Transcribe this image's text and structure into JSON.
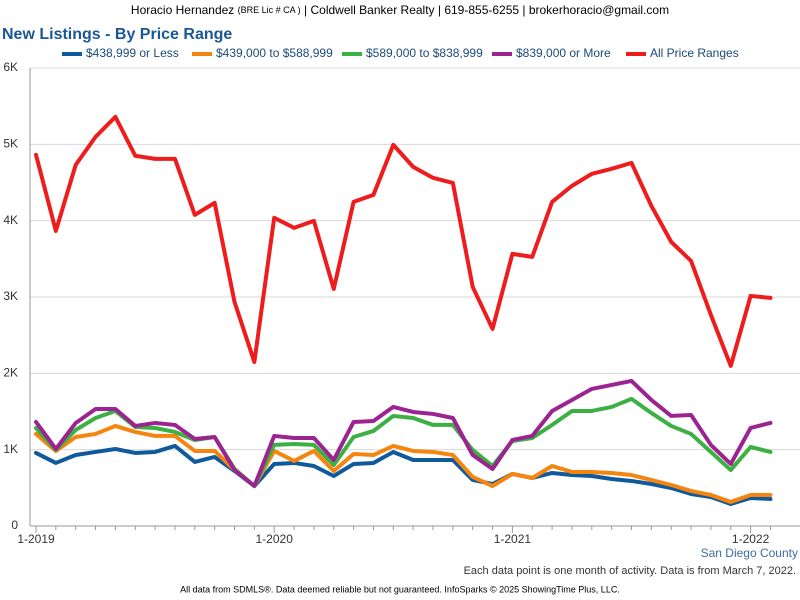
{
  "header": {
    "name": "Horacio Hernandez",
    "license": "(BRE Lic # CA )",
    "contact": "| Coldwell Banker Realty | 619-855-6255 | brokerhoracio@gmail.com"
  },
  "chart_data": {
    "type": "line",
    "title": "New Listings - By Price Range",
    "categories": [
      "1-2019",
      null,
      null,
      null,
      null,
      null,
      null,
      null,
      null,
      null,
      null,
      null,
      "1-2020",
      null,
      null,
      null,
      null,
      null,
      null,
      null,
      null,
      null,
      null,
      null,
      "1-2021",
      null,
      null,
      null,
      null,
      null,
      null,
      null,
      null,
      null,
      null,
      null,
      "1-2022",
      null
    ],
    "series": [
      {
        "name": "$438,999 or Less",
        "color": "#0f5a9c",
        "values": [
          957,
          826,
          930,
          970,
          1009,
          957,
          970,
          1049,
          839,
          904,
          721,
          524,
          813,
          826,
          786,
          655,
          813,
          826,
          970,
          865,
          865,
          865,
          603,
          550,
          682,
          629,
          695,
          668,
          655,
          616,
          590,
          550,
          498,
          419,
          380,
          288,
          367,
          354
        ]
      },
      {
        "name": "$439,000 to $588,999",
        "color": "#f5850f",
        "values": [
          1206,
          983,
          1166,
          1206,
          1311,
          1232,
          1180,
          1180,
          983,
          983,
          734,
          524,
          983,
          852,
          983,
          721,
          944,
          930,
          1049,
          983,
          970,
          930,
          642,
          524,
          682,
          629,
          786,
          708,
          708,
          695,
          668,
          603,
          537,
          459,
          406,
          315,
          406,
          406
        ]
      },
      {
        "name": "$589,000 to $838,999",
        "color": "#3cb043",
        "values": [
          1284,
          996,
          1258,
          1415,
          1507,
          1297,
          1284,
          1232,
          1127,
          1166,
          747,
          524,
          1062,
          1075,
          1062,
          799,
          1166,
          1245,
          1442,
          1415,
          1324,
          1324,
          996,
          786,
          1114,
          1153,
          1324,
          1507,
          1507,
          1560,
          1665,
          1481,
          1311,
          1206,
          970,
          734,
          1035,
          970
        ]
      },
      {
        "name": "$839,000 or More",
        "color": "#9b2491",
        "values": [
          1363,
          1009,
          1350,
          1533,
          1533,
          1311,
          1350,
          1324,
          1140,
          1166,
          734,
          524,
          1180,
          1153,
          1153,
          865,
          1363,
          1376,
          1560,
          1494,
          1468,
          1415,
          930,
          747,
          1127,
          1180,
          1507,
          1651,
          1796,
          1848,
          1900,
          1651,
          1442,
          1455,
          1062,
          813,
          1284,
          1350
        ]
      },
      {
        "name": "All Price Ranges",
        "color": "#ee1c1c",
        "values": [
          4862,
          3866,
          4731,
          5098,
          5360,
          4850,
          4810,
          4810,
          4076,
          4233,
          2936,
          2149,
          4037,
          3906,
          3997,
          3106,
          4246,
          4338,
          4993,
          4705,
          4561,
          4495,
          3132,
          2582,
          3565,
          3526,
          4246,
          4456,
          4613,
          4679,
          4757,
          4194,
          3722,
          3473,
          2765,
          2097,
          3014,
          2988
        ]
      }
    ],
    "ylim": [
      0,
      6000
    ],
    "yticks": [
      0,
      {
        "value": 1000,
        "label": "1K"
      },
      {
        "value": 2000,
        "label": "2K"
      },
      {
        "value": 3000,
        "label": "3K"
      },
      {
        "value": 4000,
        "label": "4K"
      },
      {
        "value": 5000,
        "label": "5K"
      },
      {
        "value": 6000,
        "label": "6K"
      }
    ],
    "grid": true,
    "legend": "top",
    "region_label": "San Diego County",
    "note": "Each data point is one month of activity. Data is from March 7, 2022.",
    "footer": "All data from SDMLS®. Data deemed reliable but not guaranteed. InfoSparks © 2025 ShowingTime Plus, LLC."
  }
}
